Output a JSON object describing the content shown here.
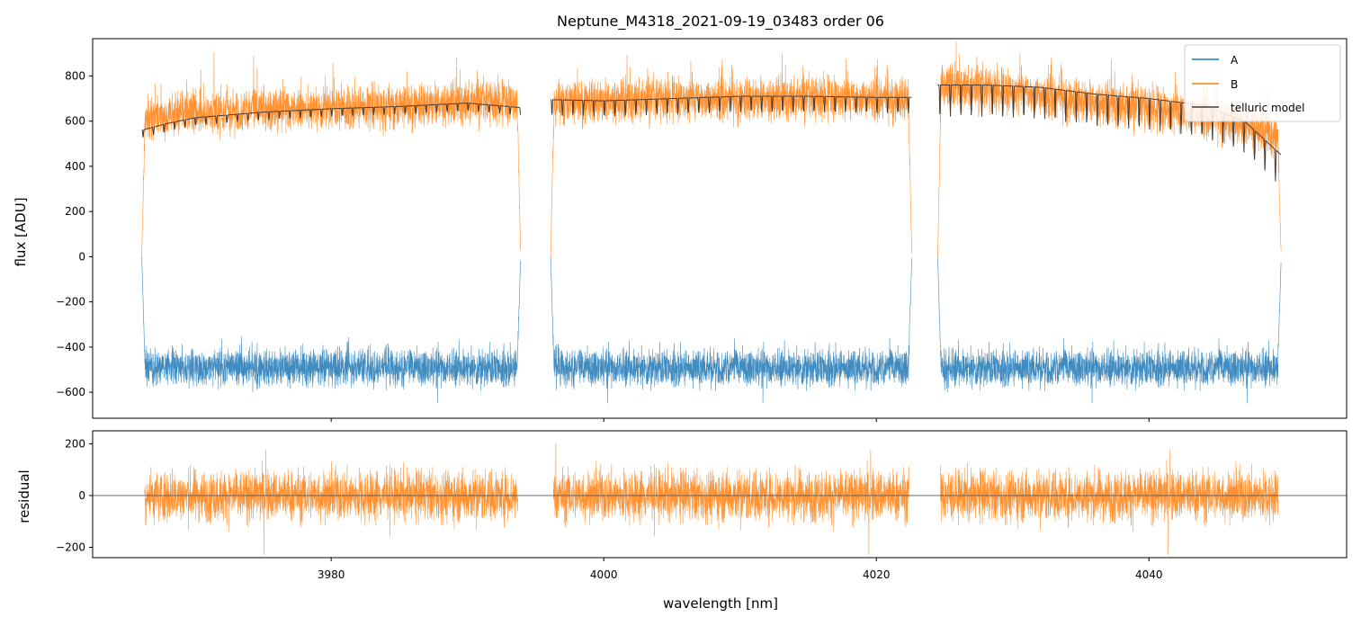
{
  "chart_data": [
    {
      "type": "line",
      "panel": "main",
      "title": "Neptune_M4318_2021-09-19_03483  order 06",
      "xlabel": "",
      "ylabel": "flux [ADU]",
      "xlim": [
        3962.5,
        4054.5
      ],
      "ylim": [
        -715,
        965
      ],
      "yticks": [
        -600,
        -400,
        -200,
        0,
        200,
        400,
        600,
        800
      ],
      "ytick_labels": [
        "−600",
        "−400",
        "−200",
        "0",
        "200",
        "400",
        "600",
        "800"
      ],
      "xticks": [
        3980,
        4000,
        4020,
        4040
      ],
      "grid": false,
      "legend_position": "top-right",
      "legend": [
        "A",
        "B",
        "telluric model"
      ],
      "segments": [
        [
          3966.1,
          3993.9
        ],
        [
          3996.1,
          4022.6
        ],
        [
          4024.5,
          4049.7
        ]
      ],
      "series": [
        {
          "name": "A",
          "color": "#1f77b4",
          "level": -490,
          "noise": 60,
          "spikes_down_to": -710,
          "spikes_up_to": -260
        },
        {
          "name": "B",
          "color": "#ff7f0e",
          "segment_levels": [
            [
              640,
              690
            ],
            [
              690,
              700
            ],
            [
              760,
              560
            ]
          ],
          "noise": 70,
          "spikes_up_to": 965
        },
        {
          "name": "telluric model",
          "color": "#4a3a32",
          "x": [
            3966.1,
            3968,
            3970,
            3975,
            3980,
            3985,
            3990,
            3993.9,
            3996.1,
            4000,
            4005,
            4010,
            4015,
            4020,
            4022.6,
            4024.5,
            4028,
            4032,
            4036,
            4040,
            4044,
            4047,
            4049.7
          ],
          "y": [
            560,
            590,
            615,
            640,
            655,
            665,
            680,
            660,
            695,
            690,
            700,
            710,
            710,
            705,
            705,
            760,
            760,
            750,
            720,
            700,
            670,
            600,
            450
          ]
        }
      ]
    },
    {
      "type": "line",
      "panel": "residual",
      "xlabel": "wavelength [nm]",
      "ylabel": "residual",
      "xlim": [
        3962.5,
        4054.5
      ],
      "ylim": [
        -240,
        250
      ],
      "yticks": [
        -200,
        0,
        200
      ],
      "ytick_labels": [
        "−200",
        "0",
        "200"
      ],
      "xticks": [
        3980,
        4000,
        4020,
        4040
      ],
      "xtick_labels": [
        "3980",
        "4000",
        "4020",
        "4040"
      ],
      "grid": false,
      "reference_line_y": 0,
      "series": [
        {
          "name": "B",
          "color": "#ff7f0e",
          "level": 0,
          "noise": 70,
          "spikes_to": 250
        }
      ]
    }
  ],
  "colors": {
    "series_a": "#1f77b4",
    "series_b": "#ff7f0e",
    "telluric": "#4a3a32",
    "frame": "#000000"
  }
}
